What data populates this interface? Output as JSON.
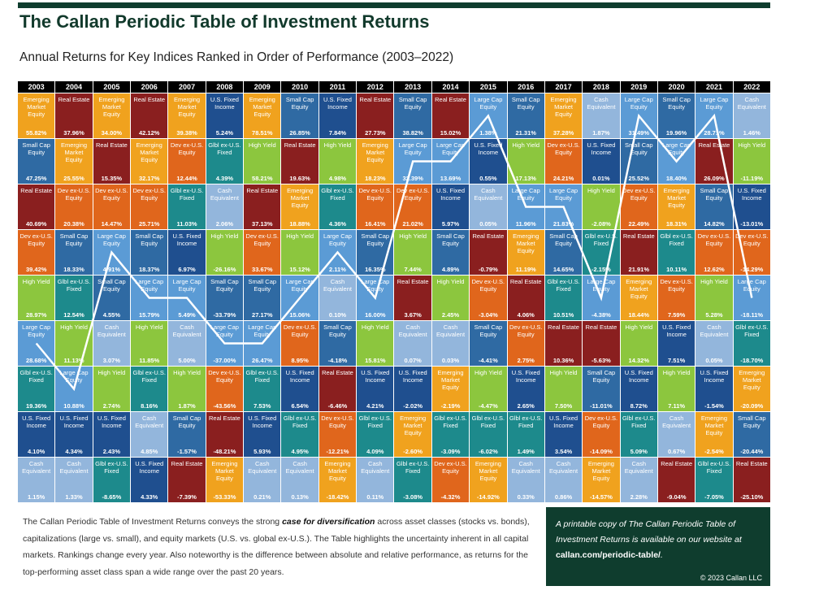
{
  "header": {
    "title": "The Callan Periodic Table of Investment Returns",
    "subtitle": "Annual Returns for Key Indices Ranked in Order of Performance (2003–2022)"
  },
  "colors": {
    "Emerging Market Equity": "#f0a21e",
    "Real Estate": "#8a1f1f",
    "Small Cap Equity": "#2f6aa3",
    "Dev ex-U.S. Equity": "#e0661c",
    "High Yield": "#8cc63e",
    "Large Cap Equity": "#5b9bd5",
    "Glbl ex-U.S. Fixed": "#1d8a8c",
    "U.S. Fixed Income": "#1f4f8f",
    "Cash Equivalent": "#93b6dc"
  },
  "table": {
    "years": [
      {
        "year": "2003",
        "cells": [
          [
            "Emerging Market Equity",
            "55.82%"
          ],
          [
            "Small Cap Equity",
            "47.25%"
          ],
          [
            "Real Estate",
            "40.69%"
          ],
          [
            "Dev ex-U.S. Equity",
            "39.42%"
          ],
          [
            "High Yield",
            "28.97%"
          ],
          [
            "Large Cap Equity",
            "28.68%"
          ],
          [
            "Glbl ex-U.S. Fixed",
            "19.36%"
          ],
          [
            "U.S. Fixed Income",
            "4.10%"
          ],
          [
            "Cash Equivalent",
            "1.15%"
          ]
        ]
      },
      {
        "year": "2004",
        "cells": [
          [
            "Real Estate",
            "37.96%"
          ],
          [
            "Emerging Market Equity",
            "25.55%"
          ],
          [
            "Dev ex-U.S. Equity",
            "20.38%"
          ],
          [
            "Small Cap Equity",
            "18.33%"
          ],
          [
            "Glbl ex-U.S. Fixed",
            "12.54%"
          ],
          [
            "High Yield",
            "11.13%"
          ],
          [
            "Large Cap Equity",
            "10.88%"
          ],
          [
            "U.S. Fixed Income",
            "4.34%"
          ],
          [
            "Cash Equivalent",
            "1.33%"
          ]
        ]
      },
      {
        "year": "2005",
        "cells": [
          [
            "Emerging Market Equity",
            "34.00%"
          ],
          [
            "Real Estate",
            "15.35%"
          ],
          [
            "Dev ex-U.S. Equity",
            "14.47%"
          ],
          [
            "Large Cap Equity",
            "4.91%"
          ],
          [
            "Small Cap Equity",
            "4.55%"
          ],
          [
            "Cash Equivalent",
            "3.07%"
          ],
          [
            "High Yield",
            "2.74%"
          ],
          [
            "U.S. Fixed Income",
            "2.43%"
          ],
          [
            "Glbl ex-U.S. Fixed",
            "-8.65%"
          ]
        ]
      },
      {
        "year": "2006",
        "cells": [
          [
            "Real Estate",
            "42.12%"
          ],
          [
            "Emerging Market Equity",
            "32.17%"
          ],
          [
            "Dev ex-U.S. Equity",
            "25.71%"
          ],
          [
            "Small Cap Equity",
            "18.37%"
          ],
          [
            "Large Cap Equity",
            "15.79%"
          ],
          [
            "High Yield",
            "11.85%"
          ],
          [
            "Glbl ex-U.S. Fixed",
            "8.16%"
          ],
          [
            "Cash Equivalent",
            "4.85%"
          ],
          [
            "U.S. Fixed Income",
            "4.33%"
          ]
        ]
      },
      {
        "year": "2007",
        "cells": [
          [
            "Emerging Market Equity",
            "39.38%"
          ],
          [
            "Dev ex-U.S. Equity",
            "12.44%"
          ],
          [
            "Glbl ex-U.S. Fixed",
            "11.03%"
          ],
          [
            "U.S. Fixed Income",
            "6.97%"
          ],
          [
            "Large Cap Equity",
            "5.49%"
          ],
          [
            "Cash Equivalent",
            "5.00%"
          ],
          [
            "High Yield",
            "1.87%"
          ],
          [
            "Small Cap Equity",
            "-1.57%"
          ],
          [
            "Real Estate",
            "-7.39%"
          ]
        ]
      },
      {
        "year": "2008",
        "cells": [
          [
            "U.S. Fixed Income",
            "5.24%"
          ],
          [
            "Glbl ex-U.S. Fixed",
            "4.39%"
          ],
          [
            "Cash Equivalent",
            "2.06%"
          ],
          [
            "High Yield",
            "-26.16%"
          ],
          [
            "Small Cap Equity",
            "-33.79%"
          ],
          [
            "Large Cap Equity",
            "-37.00%"
          ],
          [
            "Dev ex-U.S. Equity",
            "-43.56%"
          ],
          [
            "Real Estate",
            "-48.21%"
          ],
          [
            "Emerging Market Equity",
            "-53.33%"
          ]
        ]
      },
      {
        "year": "2009",
        "cells": [
          [
            "Emerging Market Equity",
            "78.51%"
          ],
          [
            "High Yield",
            "58.21%"
          ],
          [
            "Real Estate",
            "37.13%"
          ],
          [
            "Dev ex-U.S. Equity",
            "33.67%"
          ],
          [
            "Small Cap Equity",
            "27.17%"
          ],
          [
            "Large Cap Equity",
            "26.47%"
          ],
          [
            "Glbl ex-U.S. Fixed",
            "7.53%"
          ],
          [
            "U.S. Fixed Income",
            "5.93%"
          ],
          [
            "Cash Equivalent",
            "0.21%"
          ]
        ]
      },
      {
        "year": "2010",
        "cells": [
          [
            "Small Cap Equity",
            "26.85%"
          ],
          [
            "Real Estate",
            "19.63%"
          ],
          [
            "Emerging Market Equity",
            "18.88%"
          ],
          [
            "High Yield",
            "15.12%"
          ],
          [
            "Large Cap Equity",
            "15.06%"
          ],
          [
            "Dev ex-U.S. Equity",
            "8.95%"
          ],
          [
            "U.S. Fixed Income",
            "6.54%"
          ],
          [
            "Glbl ex-U.S. Fixed",
            "4.95%"
          ],
          [
            "Cash Equivalent",
            "0.13%"
          ]
        ]
      },
      {
        "year": "2011",
        "cells": [
          [
            "U.S. Fixed Income",
            "7.84%"
          ],
          [
            "High Yield",
            "4.98%"
          ],
          [
            "Glbl ex-U.S. Fixed",
            "4.36%"
          ],
          [
            "Large Cap Equity",
            "2.11%"
          ],
          [
            "Cash Equivalent",
            "0.10%"
          ],
          [
            "Small Cap Equity",
            "-4.18%"
          ],
          [
            "Real Estate",
            "-6.46%"
          ],
          [
            "Dev ex-U.S. Equity",
            "-12.21%"
          ],
          [
            "Emerging Market Equity",
            "-18.42%"
          ]
        ]
      },
      {
        "year": "2012",
        "cells": [
          [
            "Real Estate",
            "27.73%"
          ],
          [
            "Emerging Market Equity",
            "18.23%"
          ],
          [
            "Dev ex-U.S. Equity",
            "16.41%"
          ],
          [
            "Small Cap Equity",
            "16.35%"
          ],
          [
            "Large Cap Equity",
            "16.00%"
          ],
          [
            "High Yield",
            "15.81%"
          ],
          [
            "U.S. Fixed Income",
            "4.21%"
          ],
          [
            "Glbl ex-U.S. Fixed",
            "4.09%"
          ],
          [
            "Cash Equivalent",
            "0.11%"
          ]
        ]
      },
      {
        "year": "2013",
        "cells": [
          [
            "Small Cap Equity",
            "38.82%"
          ],
          [
            "Large Cap Equity",
            "32.39%"
          ],
          [
            "Dev ex-U.S. Equity",
            "21.02%"
          ],
          [
            "High Yield",
            "7.44%"
          ],
          [
            "Real Estate",
            "3.67%"
          ],
          [
            "Cash Equivalent",
            "0.07%"
          ],
          [
            "U.S. Fixed Income",
            "-2.02%"
          ],
          [
            "Emerging Market Equity",
            "-2.60%"
          ],
          [
            "Glbl ex-U.S. Fixed",
            "-3.08%"
          ]
        ]
      },
      {
        "year": "2014",
        "cells": [
          [
            "Real Estate",
            "15.02%"
          ],
          [
            "Large Cap Equity",
            "13.69%"
          ],
          [
            "U.S. Fixed Income",
            "5.97%"
          ],
          [
            "Small Cap Equity",
            "4.89%"
          ],
          [
            "High Yield",
            "2.45%"
          ],
          [
            "Cash Equivalent",
            "0.03%"
          ],
          [
            "Emerging Market Equity",
            "-2.19%"
          ],
          [
            "Glbl ex-U.S. Fixed",
            "-3.09%"
          ],
          [
            "Dev ex-U.S. Equity",
            "-4.32%"
          ]
        ]
      },
      {
        "year": "2015",
        "cells": [
          [
            "Large Cap Equity",
            "1.38%"
          ],
          [
            "U.S. Fixed Income",
            "0.55%"
          ],
          [
            "Cash Equivalent",
            "0.05%"
          ],
          [
            "Real Estate",
            "-0.79%"
          ],
          [
            "Dev ex-U.S. Equity",
            "-3.04%"
          ],
          [
            "Small Cap Equity",
            "-4.41%"
          ],
          [
            "High Yield",
            "-4.47%"
          ],
          [
            "Glbl ex-U.S. Fixed",
            "-6.02%"
          ],
          [
            "Emerging Market Equity",
            "-14.92%"
          ]
        ]
      },
      {
        "year": "2016",
        "cells": [
          [
            "Small Cap Equity",
            "21.31%"
          ],
          [
            "High Yield",
            "17.13%"
          ],
          [
            "Large Cap Equity",
            "11.96%"
          ],
          [
            "Emerging Market Equity",
            "11.19%"
          ],
          [
            "Real Estate",
            "4.06%"
          ],
          [
            "Dev ex-U.S. Equity",
            "2.75%"
          ],
          [
            "U.S. Fixed Income",
            "2.65%"
          ],
          [
            "Glbl ex-U.S. Fixed",
            "1.49%"
          ],
          [
            "Cash Equivalent",
            "0.33%"
          ]
        ]
      },
      {
        "year": "2017",
        "cells": [
          [
            "Emerging Market Equity",
            "37.28%"
          ],
          [
            "Dev ex-U.S. Equity",
            "24.21%"
          ],
          [
            "Large Cap Equity",
            "21.83%"
          ],
          [
            "Small Cap Equity",
            "14.65%"
          ],
          [
            "Glbl ex-U.S. Fixed",
            "10.51%"
          ],
          [
            "Real Estate",
            "10.36%"
          ],
          [
            "High Yield",
            "7.50%"
          ],
          [
            "U.S. Fixed Income",
            "3.54%"
          ],
          [
            "Cash Equivalent",
            "0.86%"
          ]
        ]
      },
      {
        "year": "2018",
        "cells": [
          [
            "Cash Equivalent",
            "1.87%"
          ],
          [
            "U.S. Fixed Income",
            "0.01%"
          ],
          [
            "High Yield",
            "-2.08%"
          ],
          [
            "Glbl ex-U.S. Fixed",
            "-2.15%"
          ],
          [
            "Large Cap Equity",
            "-4.38%"
          ],
          [
            "Real Estate",
            "-5.63%"
          ],
          [
            "Small Cap Equity",
            "-11.01%"
          ],
          [
            "Dev ex-U.S. Equity",
            "-14.09%"
          ],
          [
            "Emerging Market Equity",
            "-14.57%"
          ]
        ]
      },
      {
        "year": "2019",
        "cells": [
          [
            "Large Cap Equity",
            "31.49%"
          ],
          [
            "Small Cap Equity",
            "25.52%"
          ],
          [
            "Dev ex-U.S. Equity",
            "22.49%"
          ],
          [
            "Real Estate",
            "21.91%"
          ],
          [
            "Emerging Market Equity",
            "18.44%"
          ],
          [
            "High Yield",
            "14.32%"
          ],
          [
            "U.S. Fixed Income",
            "8.72%"
          ],
          [
            "Glbl ex-U.S. Fixed",
            "5.09%"
          ],
          [
            "Cash Equivalent",
            "2.28%"
          ]
        ]
      },
      {
        "year": "2020",
        "cells": [
          [
            "Small Cap Equity",
            "19.96%"
          ],
          [
            "Large Cap Equity",
            "18.40%"
          ],
          [
            "Emerging Market Equity",
            "18.31%"
          ],
          [
            "Glbl ex-U.S. Fixed",
            "10.11%"
          ],
          [
            "Dev ex-U.S. Equity",
            "7.59%"
          ],
          [
            "U.S. Fixed Income",
            "7.51%"
          ],
          [
            "High Yield",
            "7.11%"
          ],
          [
            "Cash Equivalent",
            "0.67%"
          ],
          [
            "Real Estate",
            "-9.04%"
          ]
        ]
      },
      {
        "year": "2021",
        "cells": [
          [
            "Large Cap Equity",
            "28.71%"
          ],
          [
            "Real Estate",
            "26.09%"
          ],
          [
            "Small Cap Equity",
            "14.82%"
          ],
          [
            "Dev ex-U.S. Equity",
            "12.62%"
          ],
          [
            "High Yield",
            "5.28%"
          ],
          [
            "Cash Equivalent",
            "0.05%"
          ],
          [
            "U.S. Fixed Income",
            "-1.54%"
          ],
          [
            "Emerging Market Equity",
            "-2.54%"
          ],
          [
            "Glbl ex-U.S. Fixed",
            "-7.05%"
          ]
        ]
      },
      {
        "year": "2022",
        "cells": [
          [
            "Cash Equivalent",
            "1.46%"
          ],
          [
            "High Yield",
            "-11.19%"
          ],
          [
            "U.S. Fixed Income",
            "-13.01%"
          ],
          [
            "Dev ex-U.S. Equity",
            "-14.29%"
          ],
          [
            "Large Cap Equity",
            "-18.11%"
          ],
          [
            "Glbl ex-U.S. Fixed",
            "-18.70%"
          ],
          [
            "Emerging Market Equity",
            "-20.09%"
          ],
          [
            "Small Cap Equity",
            "-20.44%"
          ],
          [
            "Real Estate",
            "-25.10%"
          ]
        ]
      }
    ],
    "highlight": "Large Cap Equity"
  },
  "footer": {
    "text_before": "The Callan Periodic Table of Investment Returns conveys the strong ",
    "emphasis": "case for diversification",
    "text_after": " across asset classes (stocks vs. bonds), capitalizations (large vs. small), and equity markets (U.S. vs. global ex-U.S.). The Table highlights the uncertainty inherent in all capital markets. Rankings change every year. Also noteworthy is the difference between absolute and relative performance, as returns for the top-performing asset class span a wide range over the past 20 years.",
    "box_text": "A printable copy of The Callan Periodic Table of Investment Returns is available on our website at ",
    "box_link": "callan.com/periodic-table/",
    "box_end": ".",
    "copyright": "© 2023 Callan LLC"
  }
}
